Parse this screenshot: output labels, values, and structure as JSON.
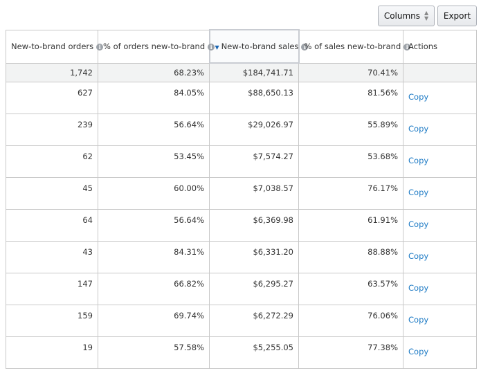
{
  "toolbar": {
    "columns_label": "Columns",
    "export_label": "Export"
  },
  "table": {
    "headers": [
      "New-to-brand orders",
      "% of orders new-to-brand",
      "New-to-brand sales",
      "% of sales new-to-brand",
      "Actions"
    ],
    "sorted_column": "New-to-brand sales",
    "totals": [
      "1,742",
      "68.23%",
      "$184,741.71",
      "70.41%"
    ],
    "rows": [
      {
        "orders": "627",
        "orders_pct": "84.05%",
        "sales": "$88,650.13",
        "sales_pct": "81.56%",
        "action": "Copy"
      },
      {
        "orders": "239",
        "orders_pct": "56.64%",
        "sales": "$29,026.97",
        "sales_pct": "55.89%",
        "action": "Copy"
      },
      {
        "orders": "62",
        "orders_pct": "53.45%",
        "sales": "$7,574.27",
        "sales_pct": "53.68%",
        "action": "Copy"
      },
      {
        "orders": "45",
        "orders_pct": "60.00%",
        "sales": "$7,038.57",
        "sales_pct": "76.17%",
        "action": "Copy"
      },
      {
        "orders": "64",
        "orders_pct": "56.64%",
        "sales": "$6,369.98",
        "sales_pct": "61.91%",
        "action": "Copy"
      },
      {
        "orders": "43",
        "orders_pct": "84.31%",
        "sales": "$6,331.20",
        "sales_pct": "88.88%",
        "action": "Copy"
      },
      {
        "orders": "147",
        "orders_pct": "66.82%",
        "sales": "$6,295.27",
        "sales_pct": "63.57%",
        "action": "Copy"
      },
      {
        "orders": "159",
        "orders_pct": "69.74%",
        "sales": "$6,272.29",
        "sales_pct": "76.06%",
        "action": "Copy"
      },
      {
        "orders": "19",
        "orders_pct": "57.58%",
        "sales": "$5,255.05",
        "sales_pct": "77.38%",
        "action": "Copy"
      }
    ]
  },
  "icons": {
    "info": "info-icon",
    "sort": "sort-descending-icon",
    "updown": "sort-updown-icon"
  },
  "colors": {
    "link": "#1b79c4",
    "border": "#c8c8c8",
    "total_bg": "#f2f3f3",
    "sort_arrow": "#1b66b3"
  }
}
